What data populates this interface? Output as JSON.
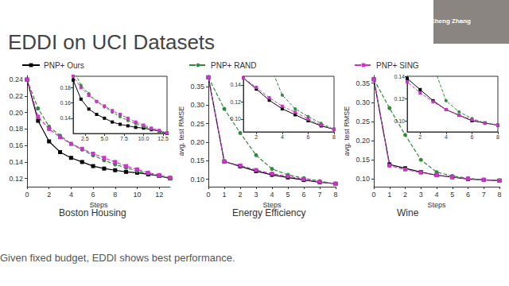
{
  "title": "EDDI on UCI Datasets",
  "caption": "Given fixed budget, EDDI shows best performance.",
  "speaker": "Cheng Zhang",
  "chart_data": [
    {
      "type": "line",
      "title": "Boston Housing",
      "x_label": "Steps",
      "legend": "top",
      "grid": false,
      "x": [
        0,
        1,
        2,
        3,
        4,
        5,
        6,
        7,
        8,
        9,
        10,
        11,
        12,
        13
      ],
      "xlim": [
        0,
        13
      ],
      "xticks": [
        0,
        2,
        4,
        6,
        8,
        10,
        12
      ],
      "ylim": [
        0.11,
        0.245
      ],
      "yticks": [
        0.12,
        0.14,
        0.16,
        0.18,
        {
          "value": 0.2,
          "label": "0.20"
        },
        0.22,
        0.24
      ],
      "series": [
        {
          "name": "PNP+ Ours",
          "color": "#000000",
          "marker": "square",
          "line_style": "solid",
          "values": [
            0.24,
            0.19,
            0.165,
            0.152,
            0.145,
            0.14,
            0.135,
            0.132,
            0.13,
            0.128,
            0.127,
            0.125,
            0.123,
            0.12
          ]
        },
        {
          "name": "PNP+ RAND",
          "color": "#2e8b3a",
          "marker": "circle",
          "line_style": "dashed",
          "values": [
            0.24,
            0.205,
            0.183,
            0.172,
            0.162,
            0.155,
            0.148,
            0.142,
            0.137,
            0.133,
            0.129,
            0.126,
            0.123,
            0.12
          ]
        },
        {
          "name": "PNP+ SING",
          "color": "#cc33cc",
          "marker": "square",
          "line_style": "dashed",
          "values": [
            0.24,
            0.195,
            0.18,
            0.17,
            0.162,
            0.156,
            0.15,
            0.145,
            0.14,
            0.135,
            0.131,
            0.127,
            0.124,
            0.121
          ]
        }
      ],
      "inset": {
        "xlim": [
          1,
          13
        ],
        "xticks": [
          2.5,
          {
            "value": 5,
            "label": "5.0"
          },
          7.5,
          {
            "value": 10,
            "label": "10.0"
          },
          12.5
        ],
        "ylim": [
          0.12,
          0.195
        ],
        "yticks": [
          0.14,
          0.16,
          0.18
        ]
      }
    },
    {
      "type": "line",
      "title": "Energy Efficiency",
      "x_label": "Steps",
      "y_label": "avg. test RMSE",
      "legend": "top",
      "grid": false,
      "x": [
        0,
        1,
        2,
        3,
        4,
        5,
        6,
        7,
        8
      ],
      "xlim": [
        0,
        8
      ],
      "xticks": [
        0,
        1,
        2,
        3,
        4,
        5,
        6,
        7,
        8
      ],
      "ylim": [
        0.08,
        0.38
      ],
      "yticks": [
        {
          "value": 0.1,
          "label": "0.10"
        },
        0.15,
        {
          "value": 0.2,
          "label": "0.20"
        },
        0.25,
        {
          "value": 0.3,
          "label": "0.30"
        },
        0.35
      ],
      "series": [
        {
          "name": "PNP+ Ours",
          "color": "#000000",
          "marker": "square",
          "line_style": "solid",
          "values": [
            0.375,
            0.148,
            0.135,
            0.122,
            0.112,
            0.105,
            0.098,
            0.092,
            0.088
          ]
        },
        {
          "name": "PNP+ RAND",
          "color": "#2e8b3a",
          "marker": "circle",
          "line_style": "dashed",
          "values": [
            0.375,
            0.29,
            0.225,
            0.165,
            0.128,
            0.112,
            0.103,
            0.095,
            0.088
          ]
        },
        {
          "name": "PNP+ SING",
          "color": "#cc33cc",
          "marker": "square",
          "line_style": "dashed",
          "values": [
            0.375,
            0.148,
            0.137,
            0.125,
            0.115,
            0.108,
            0.1,
            0.093,
            0.088
          ]
        }
      ],
      "inset": {
        "xlim": [
          1,
          8
        ],
        "xticks": [
          2,
          4,
          6,
          8
        ],
        "ylim": [
          0.085,
          0.15
        ],
        "yticks": [
          {
            "value": 0.1,
            "label": "0.10"
          },
          0.12,
          0.14
        ]
      }
    },
    {
      "type": "line",
      "title": "Wine",
      "x_label": "Steps",
      "y_label": "avg. test RMSE",
      "legend": "top",
      "grid": false,
      "x": [
        0,
        1,
        2,
        3,
        4,
        5,
        6,
        7,
        8
      ],
      "xlim": [
        0,
        8
      ],
      "xticks": [
        0,
        1,
        2,
        3,
        4,
        5,
        6,
        7,
        8
      ],
      "ylim": [
        0.08,
        0.37
      ],
      "yticks": [
        {
          "value": 0.1,
          "label": "0.10"
        },
        0.15,
        {
          "value": 0.2,
          "label": "0.20"
        },
        0.25,
        {
          "value": 0.3,
          "label": "0.30"
        },
        0.35
      ],
      "series": [
        {
          "name": "PNP+ Ours",
          "color": "#000000",
          "marker": "square",
          "line_style": "solid",
          "values": [
            0.36,
            0.138,
            0.128,
            0.118,
            0.11,
            0.105,
            0.1,
            0.098,
            0.096
          ]
        },
        {
          "name": "PNP+ RAND",
          "color": "#2e8b3a",
          "marker": "circle",
          "line_style": "dashed",
          "values": [
            0.36,
            0.285,
            0.215,
            0.15,
            0.118,
            0.108,
            0.102,
            0.098,
            0.096
          ]
        },
        {
          "name": "PNP+ SING",
          "color": "#cc33cc",
          "marker": "square",
          "line_style": "dashed",
          "values": [
            0.36,
            0.135,
            0.125,
            0.117,
            0.11,
            0.105,
            0.101,
            0.098,
            0.096
          ]
        }
      ],
      "inset": {
        "xlim": [
          1,
          8
        ],
        "xticks": [
          2,
          4,
          6,
          8
        ],
        "ylim": [
          0.09,
          0.14
        ],
        "yticks": [
          {
            "value": 0.1,
            "label": "0.10"
          },
          0.12,
          0.14
        ]
      }
    }
  ]
}
